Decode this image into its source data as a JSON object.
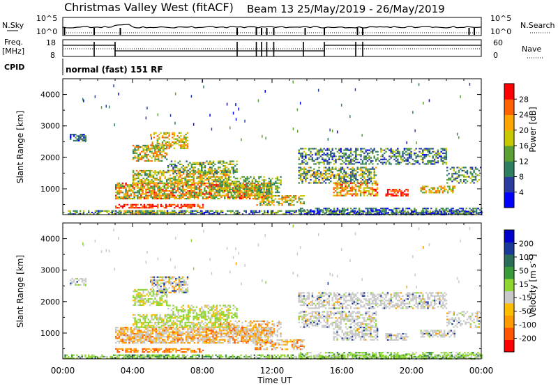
{
  "header": {
    "title": "Christmas Valley West (fitACF)",
    "beam": "Beam 13 25/May/2019 - 26/May/2019"
  },
  "status_panels": {
    "nsky_label": "N.Sky",
    "nsearch_label": "N.Search",
    "noise_ticks": [
      "10^5",
      "10^0"
    ],
    "freq_label": "Freq.",
    "freq_unit": "[MHz]",
    "freq_ticks": [
      "18",
      "8"
    ],
    "nave_label": "Nave",
    "nave_ticks": [
      "60",
      "0"
    ],
    "cpid_label": "CPID",
    "cpid_value": "normal (fast) 151 RF"
  },
  "colors": {
    "power": [
      "#0000ff",
      "#2a3ca0",
      "#2e7e60",
      "#5aa032",
      "#c8c800",
      "#ffa500",
      "#ff6000",
      "#ff0000"
    ],
    "velocity": [
      "#ff0000",
      "#ff5500",
      "#ff9a00",
      "#ffbd00",
      "#c8c8c8",
      "#8fd62f",
      "#3a9a3a",
      "#2a6e5a",
      "#1a3a9a",
      "#0000cc"
    ],
    "ground_scatter": "#c8c8c8"
  },
  "chart_data": [
    {
      "type": "heatmap",
      "panel": "power",
      "ylabel": "Slant Range [km]",
      "y_ticks": [
        "4000",
        "3000",
        "2000",
        "1000"
      ],
      "ylim": [
        180,
        4500
      ],
      "x_ticks": [
        "00:00",
        "04:00",
        "08:00",
        "12:00",
        "16:00",
        "20:00",
        "00:00"
      ],
      "xlim_hours": [
        0,
        24
      ],
      "colorbar_label": "Power [dB]",
      "colorbar_ticks": [
        "28",
        "24",
        "20",
        "16",
        "12",
        "8",
        "4"
      ],
      "colorbar_range": [
        0,
        32
      ]
    },
    {
      "type": "heatmap",
      "panel": "velocity",
      "ylabel": "Slant Range [km]",
      "y_ticks": [
        "4000",
        "3000",
        "2000",
        "1000"
      ],
      "ylim": [
        180,
        4500
      ],
      "x_ticks": [
        "00:00",
        "04:00",
        "08:00",
        "12:00",
        "16:00",
        "20:00",
        "00:00"
      ],
      "xlabel": "Time UT",
      "colorbar_label": "Velocity [m s^-1]",
      "colorbar_ticks": [
        "200",
        "100",
        "50",
        "15",
        "-15",
        "-50",
        "-100",
        "-200"
      ]
    }
  ]
}
